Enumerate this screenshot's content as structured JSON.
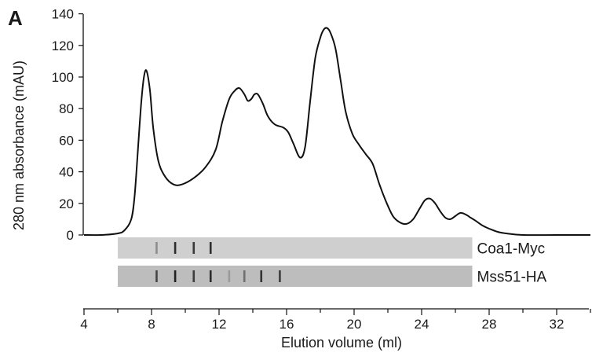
{
  "figure": {
    "panel_label": "A"
  },
  "chart_data": {
    "type": "line",
    "xlabel": "Elution volume (ml)",
    "ylabel": "280 nm absorbance (mAU)",
    "xlim": [
      4,
      34
    ],
    "ylim": [
      0,
      140
    ],
    "xticks": [
      4,
      8,
      12,
      16,
      20,
      24,
      28,
      32
    ],
    "yticks": [
      0,
      20,
      40,
      60,
      80,
      100,
      120,
      140
    ],
    "series": [
      {
        "x": [
          4.0,
          5.0,
          6.0,
          6.4,
          6.8,
          7.0,
          7.2,
          7.4,
          7.55,
          7.7,
          7.9,
          8.1,
          8.4,
          8.8,
          9.3,
          9.8,
          10.5,
          11.2,
          11.8,
          12.2,
          12.6,
          12.9,
          13.2,
          13.5,
          13.7,
          13.9,
          14.1,
          14.3,
          14.6,
          14.9,
          15.3,
          15.8,
          16.1,
          16.4,
          16.8,
          17.1,
          17.4,
          17.7,
          18.0,
          18.2,
          18.4,
          18.6,
          18.9,
          19.2,
          19.5,
          19.9,
          20.3,
          20.7,
          21.1,
          21.5,
          21.9,
          22.3,
          22.7,
          23.1,
          23.5,
          23.9,
          24.2,
          24.5,
          24.8,
          25.1,
          25.4,
          25.7,
          26.0,
          26.3,
          26.6,
          26.9,
          27.2,
          27.6,
          28.0,
          28.5,
          29.0,
          30.0,
          32.0,
          34.0
        ],
        "y": [
          0,
          0,
          1,
          3,
          10,
          25,
          55,
          85,
          100,
          104,
          92,
          68,
          47,
          37,
          32,
          32,
          36,
          43,
          54,
          72,
          86,
          91,
          93,
          89,
          85,
          86,
          89,
          89,
          83,
          75,
          70,
          68,
          65,
          58,
          49,
          56,
          85,
          112,
          125,
          130,
          131,
          128,
          118,
          98,
          78,
          64,
          57,
          51,
          45,
          32,
          21,
          12,
          8,
          7,
          10,
          17,
          22,
          23,
          20,
          15,
          11,
          10,
          12,
          14,
          13,
          11,
          9,
          6,
          4,
          2,
          1,
          0,
          0,
          0
        ]
      }
    ],
    "blots": [
      {
        "label": "Coa1-Myc",
        "x_range": [
          6,
          27
        ],
        "bands": [
          {
            "x": 8.3,
            "intensity": 0.35
          },
          {
            "x": 9.4,
            "intensity": 0.85
          },
          {
            "x": 10.5,
            "intensity": 0.8
          },
          {
            "x": 11.5,
            "intensity": 0.85
          }
        ]
      },
      {
        "label": "Mss51-HA",
        "x_range": [
          6,
          27
        ],
        "bands": [
          {
            "x": 8.3,
            "intensity": 0.7
          },
          {
            "x": 9.4,
            "intensity": 0.9
          },
          {
            "x": 10.5,
            "intensity": 0.75
          },
          {
            "x": 11.5,
            "intensity": 0.85
          },
          {
            "x": 12.6,
            "intensity": 0.2
          },
          {
            "x": 13.5,
            "intensity": 0.45
          },
          {
            "x": 14.5,
            "intensity": 0.8
          },
          {
            "x": 15.6,
            "intensity": 0.75
          }
        ]
      }
    ]
  }
}
